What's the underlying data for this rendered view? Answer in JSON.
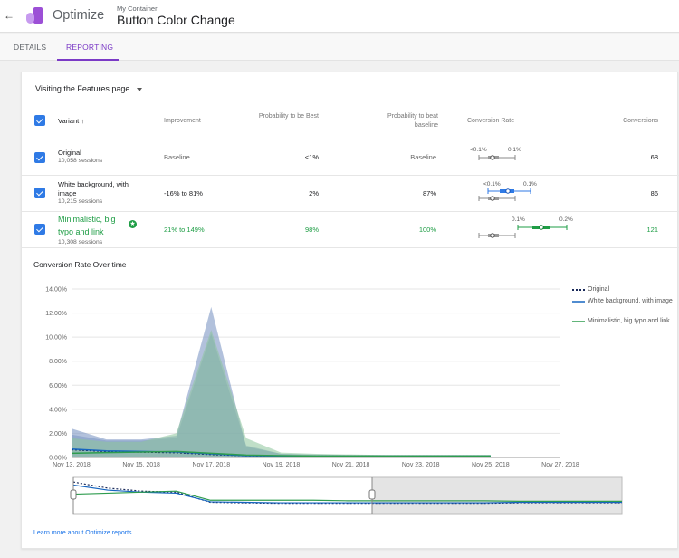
{
  "header": {
    "app_name": "Optimize",
    "container_label": "My Container",
    "experiment_title": "Button Color Change",
    "back_icon": "←"
  },
  "tabs": [
    {
      "label": "DETAILS",
      "active": false
    },
    {
      "label": "REPORTING",
      "active": true
    }
  ],
  "objective": {
    "label": "Visiting the Features page"
  },
  "table": {
    "headers": {
      "variant": "Variant",
      "improvement": "Improvement",
      "prob_best": "Probability to be Best",
      "prob_beat": "Probability to beat baseline",
      "conv_rate": "Conversion Rate",
      "conversions": "Conversions"
    },
    "rows": [
      {
        "name": "Original",
        "sessions": "10,058 sessions",
        "improvement": "Baseline",
        "prob_best": "<1%",
        "prob_beat": "Baseline",
        "ci_low": "<0.1%",
        "ci_high": "0.1%",
        "conversions": "68"
      },
      {
        "name": "White background, with image",
        "sessions": "10,215 sessions",
        "improvement": "-16% to 81%",
        "prob_best": "2%",
        "prob_beat": "87%",
        "ci_low": "<0.1%",
        "ci_high": "0.1%",
        "conversions": "86"
      },
      {
        "name": "Minimalistic, big typo and link",
        "sessions": "10,308 sessions",
        "improvement": "21% to 149%",
        "prob_best": "98%",
        "prob_beat": "100%",
        "ci_low": "0.1%",
        "ci_high": "0.2%",
        "conversions": "121"
      }
    ]
  },
  "chart_section": {
    "title": "Conversion Rate Over time"
  },
  "chart_data": {
    "type": "area",
    "categories": [
      "Nov 13, 2018",
      "Nov 14, 2018",
      "Nov 15, 2018",
      "Nov 16, 2018",
      "Nov 17, 2018",
      "Nov 18, 2018",
      "Nov 19, 2018",
      "Nov 20, 2018",
      "Nov 21, 2018",
      "Nov 22, 2018",
      "Nov 23, 2018",
      "Nov 24, 2018",
      "Nov 25, 2018"
    ],
    "x_tick_labels": [
      "Nov 13, 2018",
      "Nov 15, 2018",
      "Nov 17, 2018",
      "Nov 19, 2018",
      "Nov 21, 2018",
      "Nov 23, 2018",
      "Nov 25, 2018",
      "Nov 27, 2018"
    ],
    "y_tick_labels": [
      "0.00%",
      "2.00%",
      "4.00%",
      "6.00%",
      "8.00%",
      "10.00%",
      "12.00%",
      "14.00%"
    ],
    "ylim": [
      0,
      14
    ],
    "grid": true,
    "legend_position": "right",
    "series": [
      {
        "name": "Original",
        "color": "#1a2a5a",
        "style": "dotted",
        "values": [
          0.65,
          0.5,
          0.45,
          0.4,
          0.25,
          0.15,
          0.1,
          0.1,
          0.1,
          0.1,
          0.1,
          0.1,
          0.1
        ],
        "band_upper": [
          2.4,
          1.5,
          1.5,
          1.8,
          12.5,
          0.9,
          0.3,
          0.2,
          0.2,
          0.2,
          0.2,
          0.2,
          0.2
        ]
      },
      {
        "name": "White background, with image",
        "color": "#1565c0",
        "style": "solid",
        "values": [
          0.7,
          0.55,
          0.5,
          0.45,
          0.3,
          0.15,
          0.12,
          0.1,
          0.1,
          0.1,
          0.1,
          0.1,
          0.1
        ],
        "band_upper": [
          1.9,
          1.4,
          1.4,
          1.6,
          10.3,
          1.0,
          0.3,
          0.25,
          0.2,
          0.2,
          0.2,
          0.2,
          0.2
        ]
      },
      {
        "name": "Minimalistic, big typo and link",
        "color": "#2e9c4e",
        "style": "solid",
        "values": [
          0.35,
          0.4,
          0.45,
          0.5,
          0.35,
          0.2,
          0.15,
          0.12,
          0.12,
          0.12,
          0.12,
          0.12,
          0.12
        ],
        "band_upper": [
          1.6,
          1.3,
          1.3,
          2.0,
          10.6,
          1.6,
          0.4,
          0.3,
          0.25,
          0.2,
          0.2,
          0.2,
          0.2
        ]
      }
    ]
  },
  "footer": {
    "learn_more": "Learn more about Optimize reports."
  }
}
